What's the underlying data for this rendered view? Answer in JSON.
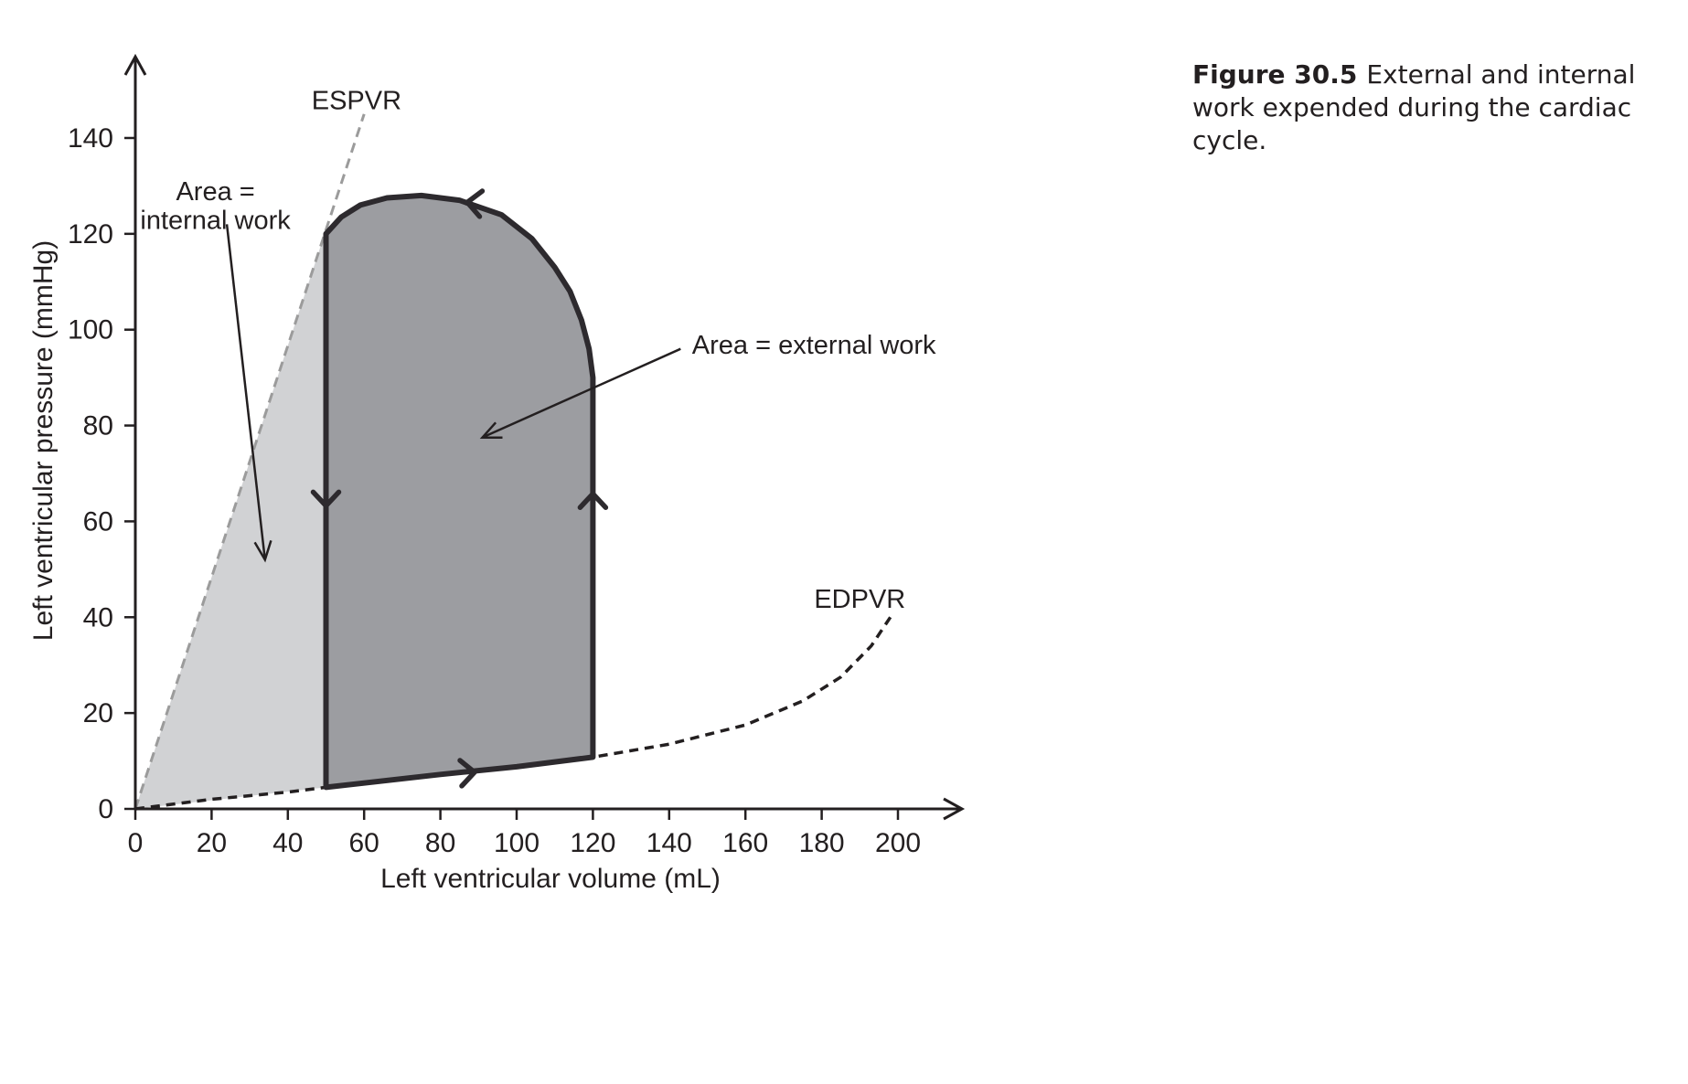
{
  "caption": {
    "figure_number": "Figure 30.5",
    "text": "External and internal work expended during the cardiac cycle."
  },
  "chart_data": {
    "type": "line",
    "xlabel": "Left ventricular volume (mL)",
    "ylabel": "Left ventricular pressure (mmHg)",
    "xlim": [
      0,
      220
    ],
    "ylim": [
      0,
      150
    ],
    "xticks": [
      0,
      20,
      40,
      60,
      80,
      100,
      120,
      140,
      160,
      180,
      200
    ],
    "yticks": [
      0,
      20,
      40,
      60,
      80,
      100,
      120,
      140
    ],
    "grid": false,
    "series": [
      {
        "name": "ESPVR",
        "style": "dashed",
        "color": "#9b9b9b",
        "points": [
          [
            0,
            0
          ],
          [
            60,
            145
          ]
        ]
      },
      {
        "name": "EDPVR",
        "style": "dashed",
        "color": "#231f20",
        "points": [
          [
            0,
            0
          ],
          [
            20,
            2
          ],
          [
            40,
            3.5
          ],
          [
            50,
            4.5
          ],
          [
            60,
            5.5
          ],
          [
            80,
            7.2
          ],
          [
            100,
            8.8
          ],
          [
            120,
            10.8
          ],
          [
            140,
            13.5
          ],
          [
            160,
            17.5
          ],
          [
            175,
            22.5
          ],
          [
            185,
            27.5
          ],
          [
            193,
            34
          ],
          [
            198,
            40
          ]
        ]
      },
      {
        "name": "pressure-volume loop",
        "style": "solid",
        "color": "#2d2a2e",
        "points": [
          [
            50,
            4.5
          ],
          [
            80,
            7.2
          ],
          [
            100,
            8.8
          ],
          [
            120,
            10.8
          ],
          [
            120,
            90
          ],
          [
            119,
            96
          ],
          [
            117,
            102
          ],
          [
            114,
            108
          ],
          [
            110,
            113
          ],
          [
            104,
            119
          ],
          [
            96,
            124
          ],
          [
            85,
            127
          ],
          [
            75,
            128
          ],
          [
            66,
            127.5
          ],
          [
            59,
            126
          ],
          [
            54,
            123.5
          ],
          [
            50,
            120
          ],
          [
            50,
            4.5
          ]
        ]
      }
    ],
    "regions": [
      {
        "label": "internal work",
        "fill": "#d1d2d4"
      },
      {
        "label": "external work",
        "fill": "#9c9da1"
      }
    ],
    "annotations": [
      {
        "label": "ESPVR",
        "x": 58,
        "y": 146,
        "color": "#8a8a8a"
      },
      {
        "label": "EDPVR",
        "x": 190,
        "y": 42
      },
      {
        "label": "Area =",
        "x": 21,
        "y": 127
      },
      {
        "label": "internal work",
        "x": 21,
        "y": 121
      },
      {
        "label": "Area = external work",
        "x": 146,
        "y": 95
      }
    ],
    "arrows": [
      {
        "from": [
          24,
          122
        ],
        "to": [
          34,
          52
        ]
      },
      {
        "from": [
          143,
          96
        ],
        "to": [
          91,
          77.5
        ]
      }
    ]
  }
}
